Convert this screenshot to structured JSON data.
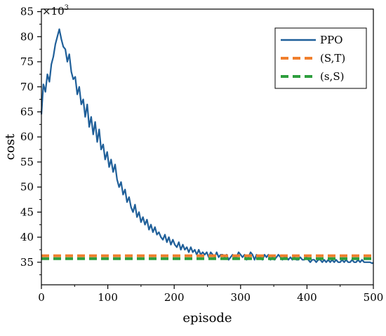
{
  "chart_data": {
    "type": "line",
    "title": "",
    "xlabel": "episode",
    "ylabel": "cost",
    "y_multiplier_base": "×10",
    "y_multiplier_exp": "3",
    "xlim": [
      0,
      500
    ],
    "ylim": [
      30.5,
      85.5
    ],
    "xticks": [
      "0",
      "100",
      "200",
      "300",
      "400",
      "500"
    ],
    "yticks": [
      "35",
      "40",
      "45",
      "50",
      "55",
      "60",
      "65",
      "70",
      "75",
      "80",
      "85"
    ],
    "grid": false,
    "legend_position": "top-right",
    "series": [
      {
        "name": "PPO",
        "style": "solid",
        "color": "#1f5f99",
        "x": [
          0,
          3,
          6,
          9,
          12,
          15,
          18,
          21,
          24,
          27,
          30,
          33,
          36,
          39,
          42,
          45,
          48,
          51,
          54,
          57,
          60,
          63,
          66,
          69,
          72,
          75,
          78,
          81,
          84,
          87,
          90,
          93,
          96,
          99,
          102,
          105,
          108,
          111,
          114,
          117,
          120,
          123,
          126,
          129,
          132,
          135,
          138,
          141,
          144,
          147,
          150,
          153,
          156,
          159,
          162,
          165,
          168,
          171,
          174,
          177,
          180,
          183,
          186,
          189,
          192,
          195,
          198,
          201,
          204,
          207,
          210,
          213,
          216,
          219,
          222,
          225,
          228,
          231,
          234,
          237,
          240,
          243,
          246,
          249,
          252,
          255,
          258,
          261,
          264,
          267,
          270,
          273,
          276,
          279,
          282,
          285,
          288,
          291,
          294,
          297,
          300,
          303,
          306,
          309,
          312,
          315,
          318,
          321,
          324,
          327,
          330,
          333,
          336,
          339,
          342,
          345,
          348,
          351,
          354,
          357,
          360,
          363,
          366,
          369,
          372,
          375,
          378,
          381,
          384,
          387,
          390,
          393,
          396,
          399,
          402,
          405,
          408,
          411,
          414,
          417,
          420,
          423,
          426,
          429,
          432,
          435,
          438,
          441,
          444,
          447,
          450,
          453,
          456,
          459,
          462,
          465,
          468,
          471,
          474,
          477,
          480,
          483,
          486,
          489,
          492,
          495,
          498,
          500
        ],
        "values": [
          64.5,
          70.5,
          69.0,
          72.5,
          71.0,
          74.5,
          76.0,
          78.5,
          80.0,
          81.5,
          79.5,
          78.0,
          77.5,
          75.0,
          76.5,
          73.0,
          71.5,
          72.0,
          68.5,
          70.0,
          66.5,
          67.5,
          64.0,
          66.5,
          62.0,
          64.0,
          60.5,
          63.0,
          59.0,
          61.5,
          57.5,
          58.5,
          55.5,
          57.0,
          54.0,
          55.5,
          53.0,
          54.5,
          51.5,
          50.0,
          51.0,
          48.5,
          49.5,
          47.0,
          48.0,
          46.0,
          45.0,
          46.5,
          44.0,
          45.0,
          43.0,
          44.0,
          42.5,
          43.5,
          41.5,
          42.5,
          41.0,
          42.0,
          40.5,
          41.0,
          40.0,
          39.5,
          40.5,
          39.0,
          40.0,
          38.5,
          39.5,
          38.5,
          38.0,
          39.0,
          37.5,
          38.5,
          37.5,
          38.0,
          37.0,
          38.0,
          37.0,
          37.5,
          36.5,
          37.5,
          36.5,
          37.0,
          36.5,
          37.0,
          36.0,
          37.0,
          36.5,
          36.0,
          37.0,
          36.0,
          36.5,
          36.5,
          36.0,
          36.5,
          35.5,
          36.0,
          36.5,
          36.0,
          36.0,
          37.0,
          36.5,
          36.0,
          36.5,
          35.5,
          36.0,
          37.0,
          36.5,
          35.5,
          36.5,
          36.0,
          36.0,
          35.5,
          36.5,
          36.0,
          36.5,
          35.5,
          36.0,
          35.5,
          36.0,
          36.5,
          36.0,
          35.5,
          36.0,
          36.0,
          35.5,
          36.0,
          35.5,
          36.0,
          35.5,
          35.5,
          36.0,
          35.5,
          35.5,
          36.0,
          35.5,
          35.0,
          35.5,
          35.5,
          35.0,
          35.5,
          35.5,
          35.0,
          35.5,
          35.0,
          35.5,
          35.0,
          35.5,
          35.0,
          35.5,
          35.0,
          35.0,
          35.5,
          35.0,
          35.5,
          35.0,
          35.0,
          35.5,
          35.0,
          35.0,
          35.5,
          35.0,
          35.5,
          35.0,
          35.0,
          35.0,
          35.0,
          34.8,
          34.9
        ]
      },
      {
        "name": "(S,T)",
        "style": "dashed",
        "color": "#f07f2d",
        "x": [
          0,
          500
        ],
        "values": [
          36.3,
          36.3
        ]
      },
      {
        "name": "(s,S)",
        "style": "dashed",
        "color": "#2e9e3e",
        "x": [
          0,
          500
        ],
        "values": [
          35.7,
          35.7
        ]
      }
    ]
  }
}
